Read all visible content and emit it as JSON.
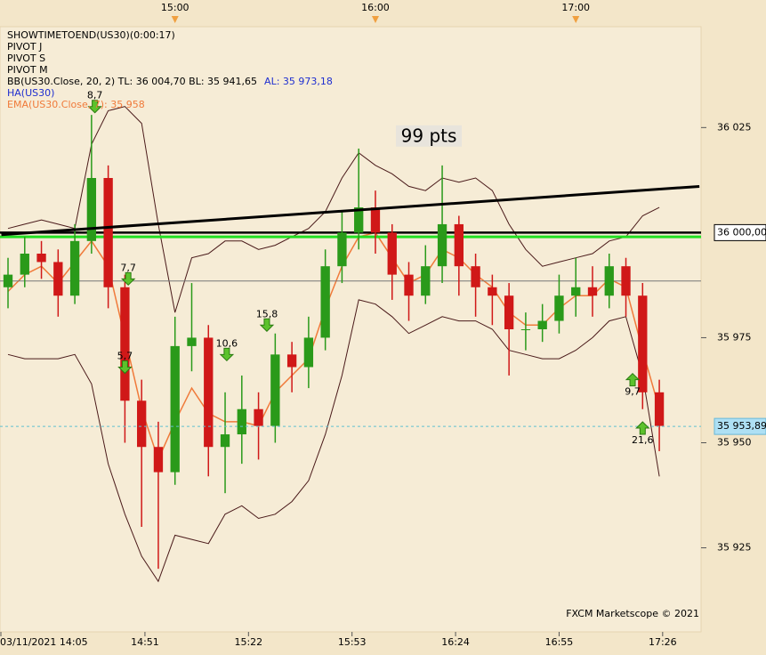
{
  "chart_data": {
    "type": "candlestick",
    "legend": [
      [
        {
          "text": "SHOWTIMETOEND(US30)(0:00:17)",
          "color": "#000000"
        }
      ],
      [
        {
          "text": "PIVOT J",
          "color": "#000000"
        }
      ],
      [
        {
          "text": "PIVOT S",
          "color": "#000000"
        }
      ],
      [
        {
          "text": "PIVOT M",
          "color": "#000000"
        }
      ],
      [
        {
          "text": "BB(US30.Close, 20, 2)  TL: 36 004,70  BL: 35 941,65",
          "color": "#000000"
        },
        {
          "text": "AL: 35 973,18",
          "color": "#1f2fd0"
        }
      ],
      [
        {
          "text": "HA(US30)",
          "color": "#1f2fd0"
        }
      ],
      [
        {
          "text": "EMA(US30.Close, 7): 35 958",
          "color": "#f07a3a"
        }
      ]
    ],
    "watermark": "FXCM Marketscope © 2021",
    "x": [
      850,
      855,
      860,
      865,
      870,
      875,
      880,
      885,
      890,
      895,
      900,
      905,
      910,
      915,
      920,
      925,
      930,
      935,
      940,
      945,
      950,
      955,
      960,
      965,
      970,
      975,
      980,
      985,
      990,
      995,
      1000,
      1005,
      1010,
      1015,
      1020,
      1025,
      1030,
      1035,
      1040,
      1045
    ],
    "open": [
      35987,
      35990,
      35995,
      35993,
      35985,
      35998,
      36013,
      35987,
      35960,
      35949,
      35943,
      35973,
      35975,
      35949,
      35952,
      35958,
      35954,
      35971,
      35968,
      35975,
      35992,
      36000,
      36006,
      36000,
      35990,
      35985,
      35992,
      36002,
      35992,
      35987,
      35985,
      35977,
      35977,
      35979,
      35985,
      35987,
      35985,
      35992,
      35985,
      35962
    ],
    "high": [
      35994,
      35999,
      35998,
      35996,
      36002,
      36028,
      36016,
      35990,
      35965,
      35955,
      35980,
      35988,
      35978,
      35962,
      35966,
      35962,
      35976,
      35974,
      35980,
      35996,
      36005,
      36020,
      36010,
      36002,
      35993,
      35997,
      36016,
      36004,
      35995,
      35990,
      35988,
      35981,
      35983,
      35990,
      35994,
      35992,
      35995,
      35994,
      35988,
      35965
    ],
    "low": [
      35982,
      35987,
      35989,
      35980,
      35983,
      35995,
      35982,
      35950,
      35930,
      35920,
      35940,
      35967,
      35942,
      35938,
      35945,
      35946,
      35950,
      35962,
      35963,
      35972,
      35988,
      35996,
      35995,
      35984,
      35979,
      35983,
      35988,
      35985,
      35980,
      35978,
      35966,
      35972,
      35974,
      35976,
      35980,
      35980,
      35982,
      35980,
      35958,
      35948
    ],
    "close": [
      35990,
      35995,
      35993,
      35985,
      35998,
      36013,
      35987,
      35960,
      35949,
      35943,
      35973,
      35975,
      35949,
      35952,
      35958,
      35954,
      35971,
      35968,
      35975,
      35992,
      36000,
      36006,
      36000,
      35990,
      35985,
      35992,
      36002,
      35992,
      35987,
      35985,
      35977,
      35977,
      35979,
      35985,
      35987,
      35985,
      35992,
      35985,
      35962,
      35954
    ],
    "up_color": "#2a9a1a",
    "down_color": "#d01818",
    "lines": [
      {
        "color": "#4a1a1a",
        "values": [
          36001,
          36002,
          36003,
          36002,
          36001,
          36021,
          36029,
          36030,
          36026,
          36002,
          35981,
          35994,
          35995,
          35998,
          35998,
          35996,
          35997,
          35999,
          36001,
          36005,
          36013,
          36019,
          36016,
          36014,
          36011,
          36010,
          36013,
          36012,
          36013,
          36010,
          36002,
          35996,
          35992,
          35993,
          35994,
          35995,
          35998,
          35999,
          36004,
          36006
        ]
      },
      {
        "color": "#4a1a1a",
        "values": [
          35971,
          35970,
          35970,
          35970,
          35971,
          35964,
          35945,
          35933,
          35923,
          35917,
          35928,
          35927,
          35926,
          35933,
          35935,
          35932,
          35933,
          35936,
          35941,
          35952,
          35966,
          35984,
          35983,
          35980,
          35976,
          35978,
          35980,
          35979,
          35979,
          35977,
          35972,
          35971,
          35970,
          35970,
          35972,
          35975,
          35979,
          35980,
          35966,
          35942
        ]
      },
      {
        "color": "#f07a3a",
        "values": [
          35986,
          35990,
          35992,
          35988,
          35993,
          35998,
          35992,
          35975,
          35958,
          35946,
          35955,
          35963,
          35957,
          35955,
          35955,
          35954,
          35962,
          35966,
          35970,
          35982,
          35992,
          35999,
          36000,
          35994,
          35988,
          35990,
          35996,
          35994,
          35990,
          35987,
          35981,
          35978,
          35978,
          35982,
          35985,
          35985,
          35989,
          35987,
          35972,
          35958
        ]
      }
    ],
    "hlines": [
      {
        "value": 36000,
        "color": "#000000",
        "width": 2.5
      },
      {
        "value": 35999,
        "color": "#22e022",
        "width": 3
      },
      {
        "value": 35988.5,
        "color": "#777777",
        "width": 1
      }
    ],
    "trendline": {
      "x": [
        848,
        1057
      ],
      "values": [
        35999.5,
        36011
      ],
      "color": "#000000"
    },
    "price_labels": [
      {
        "value": 36000,
        "label": "36 000,00"
      },
      {
        "value": 35953.89,
        "label": "35 953,89"
      }
    ],
    "signals": [
      {
        "label": "8,7",
        "x": 876,
        "y": 36030,
        "direction": "down"
      },
      {
        "label": "7,7",
        "x": 886,
        "y": 35989,
        "direction": "down"
      },
      {
        "label": "5,7",
        "x": 885,
        "y": 35968,
        "direction": "down"
      },
      {
        "label": "10,6",
        "x": 915.5,
        "y": 35971,
        "direction": "down"
      },
      {
        "label": "15,8",
        "x": 927.5,
        "y": 35978,
        "direction": "down"
      },
      {
        "label": "9,7",
        "x": 1037,
        "y": 35965,
        "direction": "up"
      },
      {
        "label": "21,6",
        "x": 1040,
        "y": 35953.5,
        "direction": "up"
      }
    ],
    "annotation": {
      "text": "99 pts",
      "x": 976,
      "y": 36023
    },
    "xlim": [
      847.6,
      1057.5
    ],
    "ylim": [
      35905,
      36049
    ],
    "yticks": [
      {
        "value": 36025,
        "label": "36 025"
      },
      {
        "value": 35975,
        "label": "35 975"
      },
      {
        "value": 35950,
        "label": "35 950"
      },
      {
        "value": 35925,
        "label": "35 925"
      }
    ],
    "xticks": [
      {
        "value": 845,
        "label": "03/11/2021 14:05"
      },
      {
        "value": 891,
        "label": "14:51"
      },
      {
        "value": 922,
        "label": "15:22"
      },
      {
        "value": 953,
        "label": "15:53"
      },
      {
        "value": 984,
        "label": "16:24"
      },
      {
        "value": 1015,
        "label": "16:55"
      },
      {
        "value": 1046,
        "label": "17:26"
      }
    ],
    "top_ticks": [
      {
        "value": 900,
        "label": "15:00"
      },
      {
        "value": 960,
        "label": "16:00"
      },
      {
        "value": 1020,
        "label": "17:00"
      }
    ]
  }
}
